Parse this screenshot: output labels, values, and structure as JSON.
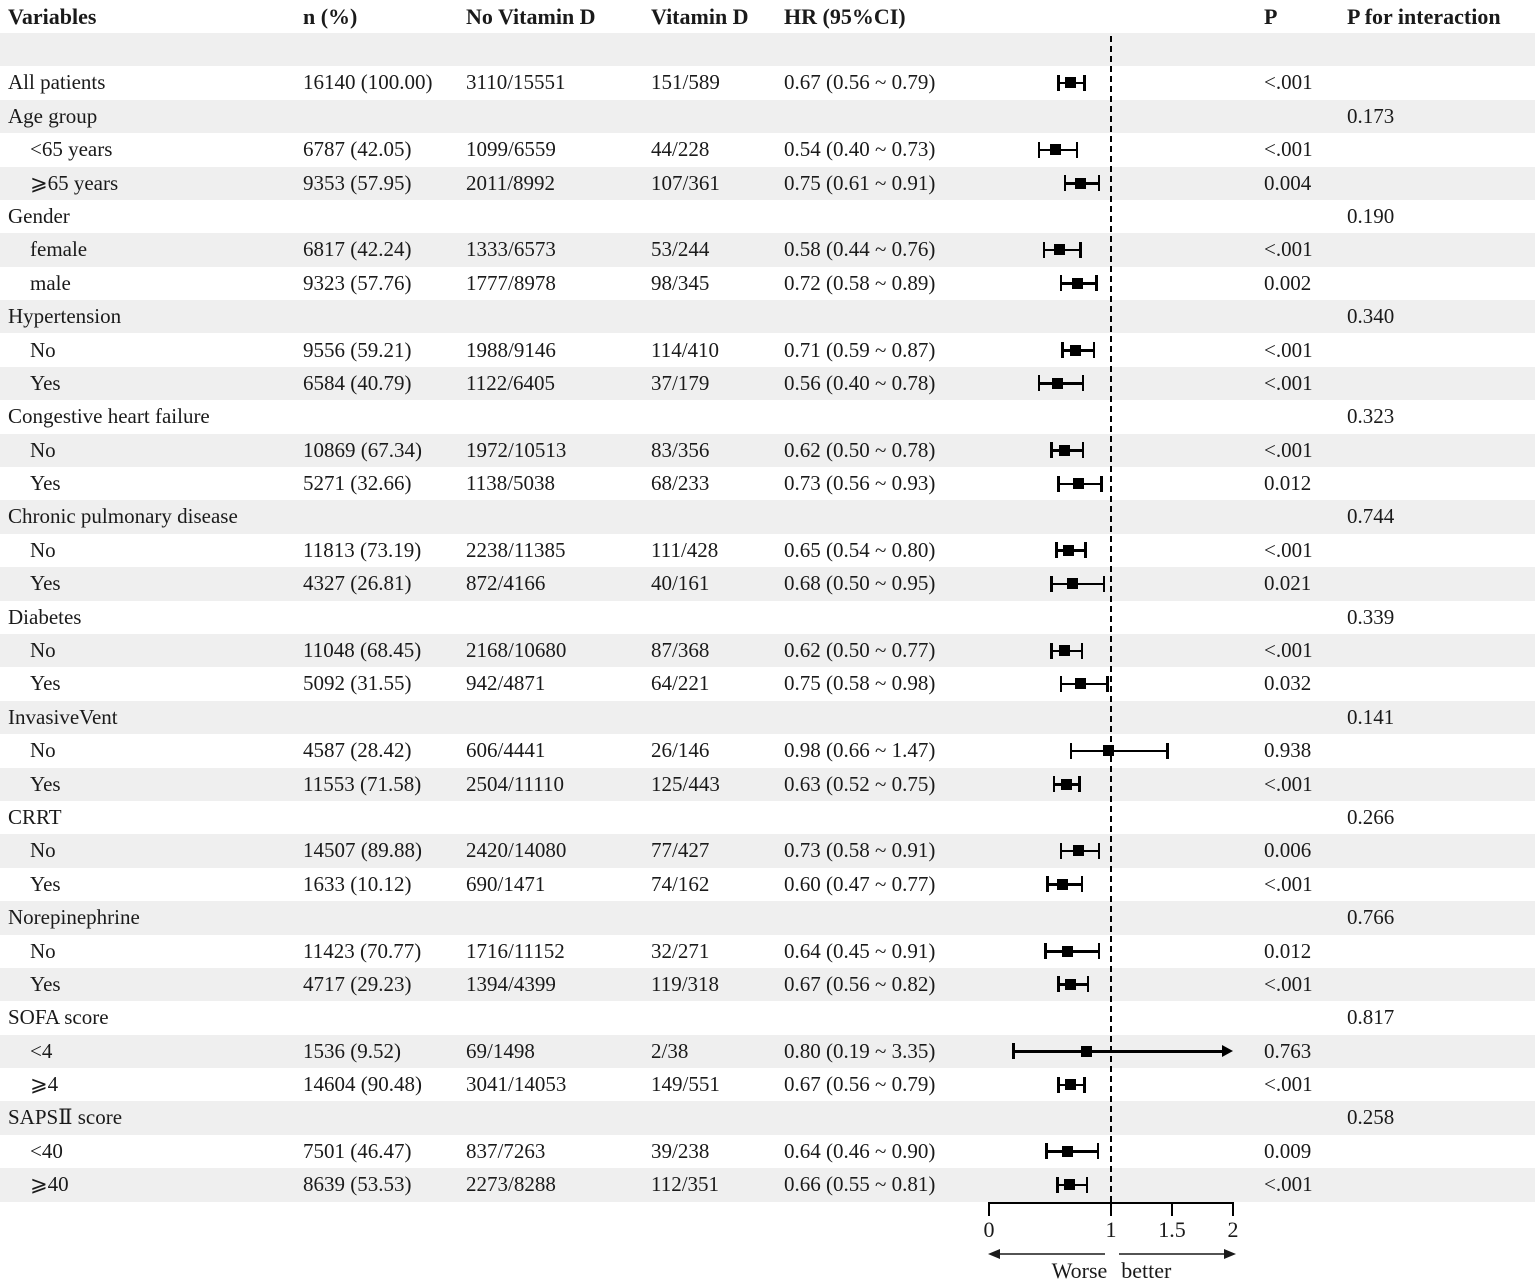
{
  "colors": {
    "stripe": "#efefef",
    "ink": "#1a1a1a",
    "marker": "#000000",
    "ref_line": "#000000"
  },
  "chart_data": {
    "type": "forest",
    "header": {
      "variables": "Variables",
      "n": "n (%)",
      "no_vitd": "No Vitamin D",
      "vitd": "Vitamin D",
      "hr": "HR (95%CI)",
      "p": "P",
      "p_interaction": "P for interaction"
    },
    "axis": {
      "ticks": [
        0,
        1,
        1.5,
        2
      ],
      "tick_labels": [
        "0",
        "1",
        "1.5",
        "2"
      ],
      "range": [
        0,
        2
      ],
      "ref_line": 1,
      "left_label": "Worse",
      "right_label": "better"
    },
    "rows": [
      {
        "spacer": true
      },
      {
        "label": "All patients",
        "indent": false,
        "n": "16140 (100.00)",
        "no_vitd": "3110/15551",
        "vitd": "151/589",
        "hr_text": "0.67 (0.56 ~ 0.79)",
        "hr": 0.67,
        "lo": 0.56,
        "hi": 0.79,
        "p": "<.001"
      },
      {
        "label": "Age group",
        "indent": false,
        "p_interaction": "0.173"
      },
      {
        "label": "<65 years",
        "indent": true,
        "n": "6787 (42.05)",
        "no_vitd": "1099/6559",
        "vitd": "44/228",
        "hr_text": "0.54 (0.40 ~ 0.73)",
        "hr": 0.54,
        "lo": 0.4,
        "hi": 0.73,
        "p": "<.001"
      },
      {
        "label": "⩾65 years",
        "indent": true,
        "n": "9353 (57.95)",
        "no_vitd": "2011/8992",
        "vitd": "107/361",
        "hr_text": "0.75 (0.61 ~ 0.91)",
        "hr": 0.75,
        "lo": 0.61,
        "hi": 0.91,
        "p": "0.004"
      },
      {
        "label": "Gender",
        "indent": false,
        "p_interaction": "0.190"
      },
      {
        "label": "female",
        "indent": true,
        "n": "6817 (42.24)",
        "no_vitd": "1333/6573",
        "vitd": "53/244",
        "hr_text": "0.58 (0.44 ~ 0.76)",
        "hr": 0.58,
        "lo": 0.44,
        "hi": 0.76,
        "p": "<.001"
      },
      {
        "label": "male",
        "indent": true,
        "n": "9323 (57.76)",
        "no_vitd": "1777/8978",
        "vitd": "98/345",
        "hr_text": "0.72 (0.58 ~ 0.89)",
        "hr": 0.72,
        "lo": 0.58,
        "hi": 0.89,
        "p": "0.002"
      },
      {
        "label": "Hypertension",
        "indent": false,
        "p_interaction": "0.340"
      },
      {
        "label": "No",
        "indent": true,
        "n": "9556 (59.21)",
        "no_vitd": "1988/9146",
        "vitd": "114/410",
        "hr_text": "0.71 (0.59 ~ 0.87)",
        "hr": 0.71,
        "lo": 0.59,
        "hi": 0.87,
        "p": "<.001"
      },
      {
        "label": "Yes",
        "indent": true,
        "n": "6584 (40.79)",
        "no_vitd": "1122/6405",
        "vitd": "37/179",
        "hr_text": "0.56 (0.40 ~ 0.78)",
        "hr": 0.56,
        "lo": 0.4,
        "hi": 0.78,
        "p": "<.001"
      },
      {
        "label": "Congestive heart failure",
        "indent": false,
        "p_interaction": "0.323"
      },
      {
        "label": "No",
        "indent": true,
        "n": "10869 (67.34)",
        "no_vitd": "1972/10513",
        "vitd": "83/356",
        "hr_text": "0.62 (0.50 ~ 0.78)",
        "hr": 0.62,
        "lo": 0.5,
        "hi": 0.78,
        "p": "<.001"
      },
      {
        "label": "Yes",
        "indent": true,
        "n": "5271 (32.66)",
        "no_vitd": "1138/5038",
        "vitd": "68/233",
        "hr_text": "0.73 (0.56 ~ 0.93)",
        "hr": 0.73,
        "lo": 0.56,
        "hi": 0.93,
        "p": "0.012"
      },
      {
        "label": "Chronic pulmonary disease",
        "indent": false,
        "p_interaction": "0.744"
      },
      {
        "label": "No",
        "indent": true,
        "n": "11813 (73.19)",
        "no_vitd": "2238/11385",
        "vitd": "111/428",
        "hr_text": "0.65 (0.54 ~ 0.80)",
        "hr": 0.65,
        "lo": 0.54,
        "hi": 0.8,
        "p": "<.001"
      },
      {
        "label": "Yes",
        "indent": true,
        "n": "4327 (26.81)",
        "no_vitd": "872/4166",
        "vitd": "40/161",
        "hr_text": "0.68 (0.50 ~ 0.95)",
        "hr": 0.68,
        "lo": 0.5,
        "hi": 0.95,
        "p": "0.021"
      },
      {
        "label": "Diabetes",
        "indent": false,
        "p_interaction": "0.339"
      },
      {
        "label": "No",
        "indent": true,
        "n": "11048 (68.45)",
        "no_vitd": "2168/10680",
        "vitd": "87/368",
        "hr_text": "0.62 (0.50 ~ 0.77)",
        "hr": 0.62,
        "lo": 0.5,
        "hi": 0.77,
        "p": "<.001"
      },
      {
        "label": "Yes",
        "indent": true,
        "n": "5092 (31.55)",
        "no_vitd": "942/4871",
        "vitd": "64/221",
        "hr_text": "0.75 (0.58 ~ 0.98)",
        "hr": 0.75,
        "lo": 0.58,
        "hi": 0.98,
        "p": "0.032"
      },
      {
        "label": "InvasiveVent",
        "indent": false,
        "p_interaction": "0.141"
      },
      {
        "label": "No",
        "indent": true,
        "n": "4587 (28.42)",
        "no_vitd": "606/4441",
        "vitd": "26/146",
        "hr_text": "0.98 (0.66 ~ 1.47)",
        "hr": 0.98,
        "lo": 0.66,
        "hi": 1.47,
        "p": "0.938"
      },
      {
        "label": "Yes",
        "indent": true,
        "n": "11553 (71.58)",
        "no_vitd": "2504/11110",
        "vitd": "125/443",
        "hr_text": "0.63 (0.52 ~ 0.75)",
        "hr": 0.63,
        "lo": 0.52,
        "hi": 0.75,
        "p": "<.001"
      },
      {
        "label": "CRRT",
        "indent": false,
        "p_interaction": "0.266"
      },
      {
        "label": "No",
        "indent": true,
        "n": "14507 (89.88)",
        "no_vitd": "2420/14080",
        "vitd": "77/427",
        "hr_text": "0.73 (0.58 ~ 0.91)",
        "hr": 0.73,
        "lo": 0.58,
        "hi": 0.91,
        "p": "0.006"
      },
      {
        "label": "Yes",
        "indent": true,
        "n": "1633 (10.12)",
        "no_vitd": "690/1471",
        "vitd": "74/162",
        "hr_text": "0.60 (0.47 ~ 0.77)",
        "hr": 0.6,
        "lo": 0.47,
        "hi": 0.77,
        "p": "<.001"
      },
      {
        "label": "Norepinephrine",
        "indent": false,
        "p_interaction": "0.766"
      },
      {
        "label": "No",
        "indent": true,
        "n": "11423 (70.77)",
        "no_vitd": "1716/11152",
        "vitd": "32/271",
        "hr_text": "0.64 (0.45 ~ 0.91)",
        "hr": 0.64,
        "lo": 0.45,
        "hi": 0.91,
        "p": "0.012"
      },
      {
        "label": "Yes",
        "indent": true,
        "n": "4717 (29.23)",
        "no_vitd": "1394/4399",
        "vitd": "119/318",
        "hr_text": "0.67 (0.56 ~ 0.82)",
        "hr": 0.67,
        "lo": 0.56,
        "hi": 0.82,
        "p": "<.001"
      },
      {
        "label": "SOFA score",
        "indent": false,
        "p_interaction": "0.817"
      },
      {
        "label": "<4",
        "indent": true,
        "n": "1536 (9.52)",
        "no_vitd": "69/1498",
        "vitd": "2/38",
        "hr_text": "0.80 (0.19 ~ 3.35)",
        "hr": 0.8,
        "lo": 0.19,
        "hi": 3.35,
        "p": "0.763"
      },
      {
        "label": "⩾4",
        "indent": true,
        "n": "14604 (90.48)",
        "no_vitd": "3041/14053",
        "vitd": "149/551",
        "hr_text": "0.67 (0.56 ~ 0.79)",
        "hr": 0.67,
        "lo": 0.56,
        "hi": 0.79,
        "p": "<.001"
      },
      {
        "label": "SAPSⅡ score",
        "indent": false,
        "p_interaction": "0.258"
      },
      {
        "label": "<40",
        "indent": true,
        "n": "7501 (46.47)",
        "no_vitd": "837/7263",
        "vitd": "39/238",
        "hr_text": "0.64 (0.46 ~ 0.90)",
        "hr": 0.64,
        "lo": 0.46,
        "hi": 0.9,
        "p": "0.009"
      },
      {
        "label": "⩾40",
        "indent": true,
        "n": "8639 (53.53)",
        "no_vitd": "2273/8288",
        "vitd": "112/351",
        "hr_text": "0.66 (0.55 ~ 0.81)",
        "hr": 0.66,
        "lo": 0.55,
        "hi": 0.81,
        "p": "<.001"
      }
    ]
  }
}
